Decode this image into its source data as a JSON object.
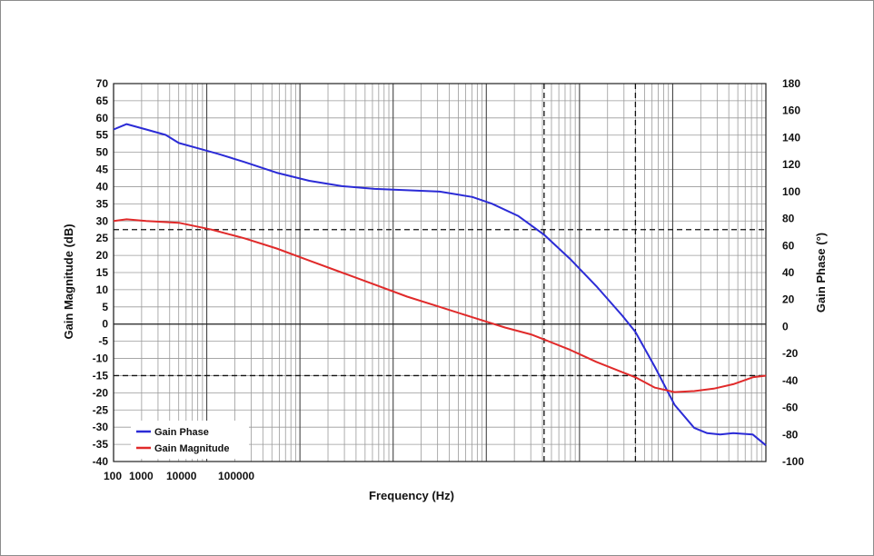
{
  "chart_data": {
    "type": "line",
    "xlabel": "Frequency (Hz)",
    "ylabel": "Gain Magnitude (dB)",
    "y2label": "Gain Phase (°)",
    "x_scale": "log",
    "x_tick_labels": [
      "100",
      "1000",
      "10000",
      "100000"
    ],
    "ylim": [
      -40,
      70
    ],
    "y2lim": [
      -100,
      180
    ],
    "y_ticks": [
      70,
      65,
      60,
      55,
      50,
      45,
      40,
      35,
      30,
      25,
      20,
      15,
      10,
      5,
      0,
      -5,
      -10,
      -15,
      -20,
      -25,
      -30,
      -35,
      -40
    ],
    "y2_ticks": [
      180,
      160,
      140,
      120,
      100,
      80,
      60,
      40,
      20,
      0,
      -20,
      -40,
      -60,
      -80,
      -100
    ],
    "grid": true,
    "legend_position": "bottom-left",
    "reference_lines": {
      "horizontal_dB": [
        27.5,
        -15
      ],
      "vertical_relative": [
        0.66,
        0.8
      ]
    },
    "series": [
      {
        "name": "Gain Phase",
        "color": "#2b2bd6",
        "axis": "right",
        "t": [
          0,
          0.02,
          0.05,
          0.08,
          0.1,
          0.13,
          0.16,
          0.2,
          0.25,
          0.3,
          0.35,
          0.4,
          0.45,
          0.5,
          0.55,
          0.58,
          0.62,
          0.66,
          0.7,
          0.74,
          0.78,
          0.8,
          0.83,
          0.86,
          0.89,
          0.91,
          0.93,
          0.95,
          0.98,
          1.0
        ],
        "values": [
          146,
          150,
          146,
          142,
          136,
          132,
          128,
          122,
          114,
          108,
          104,
          102,
          101,
          100,
          96,
          91,
          82,
          68,
          50,
          30,
          8,
          -4,
          -30,
          -58,
          -75,
          -79,
          -80,
          -79,
          -80,
          -88
        ]
      },
      {
        "name": "Gain Magnitude",
        "color": "#e02a2a",
        "axis": "left",
        "t": [
          0,
          0.02,
          0.05,
          0.1,
          0.15,
          0.2,
          0.25,
          0.3,
          0.35,
          0.4,
          0.45,
          0.5,
          0.55,
          0.6,
          0.64,
          0.66,
          0.7,
          0.74,
          0.78,
          0.8,
          0.83,
          0.86,
          0.89,
          0.92,
          0.95,
          0.98,
          1.0
        ],
        "values": [
          30,
          30.5,
          30,
          29.5,
          27.5,
          25,
          22,
          18.5,
          15,
          11.5,
          8,
          5,
          2,
          -1,
          -3,
          -4.5,
          -7.5,
          -11,
          -14,
          -15.5,
          -18.5,
          -19.8,
          -19.5,
          -18.8,
          -17.5,
          -15.5,
          -15
        ]
      }
    ]
  }
}
